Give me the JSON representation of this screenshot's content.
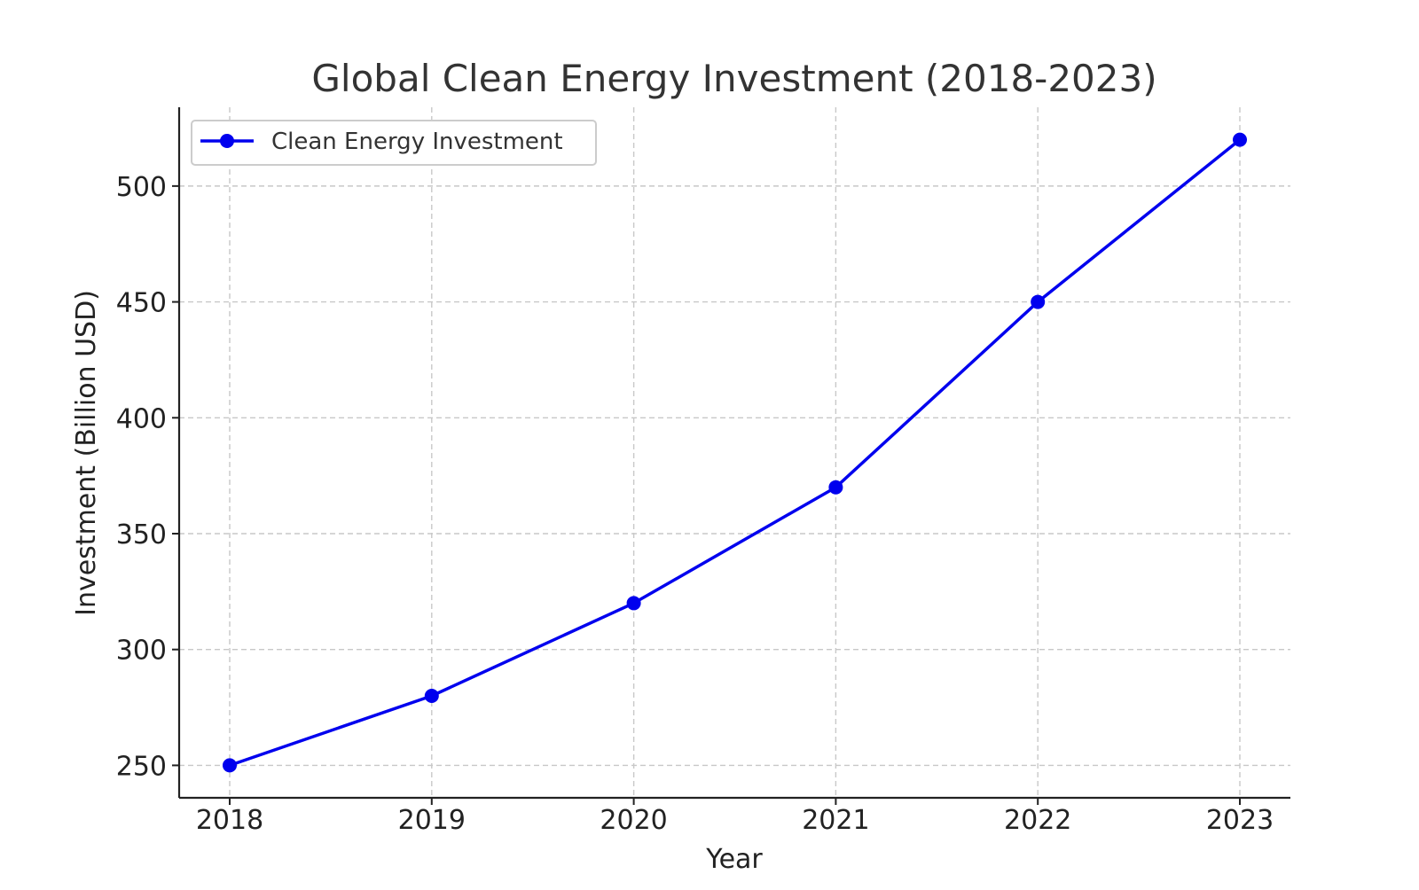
{
  "chart_data": {
    "type": "line",
    "title": "Global Clean Energy Investment (2018-2023)",
    "xlabel": "Year",
    "ylabel": "Investment (Billion USD)",
    "categories": [
      "2018",
      "2019",
      "2020",
      "2021",
      "2022",
      "2023"
    ],
    "series": [
      {
        "name": "Clean Energy Investment",
        "values": [
          250,
          280,
          320,
          370,
          450,
          520
        ],
        "color": "#0000ee",
        "marker": "circle"
      }
    ],
    "y_ticks": [
      250,
      300,
      350,
      400,
      450,
      500
    ],
    "ylim": [
      236,
      534
    ],
    "grid": true,
    "legend_position": "top-left"
  }
}
